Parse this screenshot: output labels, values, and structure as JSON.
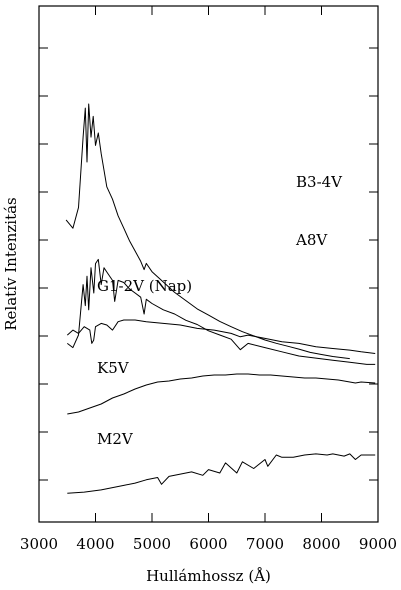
{
  "chart_data": {
    "type": "line",
    "xlabel": "Hullámhossz (Å)",
    "ylabel": "Relatív Intenzitás",
    "xlim": [
      3000,
      9000
    ],
    "x_ticks": [
      3000,
      4000,
      5000,
      6000,
      7000,
      8000,
      9000
    ],
    "y_ticks_labeled": false,
    "y_minor_ticks": 10,
    "grid": false,
    "legend": "none (series labelled directly)",
    "series": [
      {
        "name": "B3-4V",
        "x": [
          3480,
          3600,
          3700,
          3780,
          3820,
          3850,
          3880,
          3920,
          3960,
          4000,
          4050,
          4100,
          4150,
          4200,
          4300,
          4400,
          4500,
          4600,
          4700,
          4800,
          4861,
          4900,
          5000,
          5200,
          5400,
          5600,
          5800,
          6000,
          6200,
          6400,
          6600,
          6800,
          7000,
          7200,
          7400,
          7600,
          7800,
          8000,
          8200,
          8500
        ],
        "y": [
          0.72,
          0.7,
          0.75,
          0.92,
          0.99,
          0.86,
          1.0,
          0.92,
          0.97,
          0.9,
          0.93,
          0.88,
          0.84,
          0.8,
          0.77,
          0.73,
          0.7,
          0.67,
          0.645,
          0.62,
          0.6,
          0.615,
          0.595,
          0.57,
          0.545,
          0.525,
          0.505,
          0.49,
          0.475,
          0.462,
          0.45,
          0.44,
          0.43,
          0.422,
          0.415,
          0.408,
          0.4,
          0.395,
          0.39,
          0.385
        ]
      },
      {
        "name": "A8V",
        "x": [
          3500,
          3600,
          3700,
          3780,
          3820,
          3850,
          3880,
          3920,
          3970,
          4000,
          4050,
          4100,
          4150,
          4200,
          4300,
          4340,
          4400,
          4500,
          4600,
          4700,
          4800,
          4861,
          4900,
          5000,
          5200,
          5400,
          5600,
          5800,
          6000,
          6200,
          6400,
          6563,
          6700,
          7000,
          7300,
          7600,
          7900,
          8200,
          8500,
          8800,
          8950
        ],
        "y": [
          0.48,
          0.47,
          0.5,
          0.62,
          0.57,
          0.64,
          0.56,
          0.66,
          0.6,
          0.67,
          0.68,
          0.62,
          0.66,
          0.65,
          0.63,
          0.58,
          0.63,
          0.625,
          0.61,
          0.6,
          0.59,
          0.55,
          0.585,
          0.575,
          0.56,
          0.55,
          0.535,
          0.525,
          0.51,
          0.5,
          0.49,
          0.465,
          0.48,
          0.47,
          0.46,
          0.45,
          0.445,
          0.44,
          0.435,
          0.43,
          0.43
        ]
      },
      {
        "name": "G1-2V (Nap)",
        "x": [
          3500,
          3600,
          3700,
          3800,
          3900,
          3934,
          3968,
          4000,
          4100,
          4200,
          4300,
          4400,
          4500,
          4700,
          4900,
          5200,
          5500,
          5800,
          6100,
          6400,
          6563,
          6700,
          7000,
          7300,
          7600,
          7900,
          8200,
          8500,
          8700,
          8950
        ],
        "y": [
          0.355,
          0.37,
          0.36,
          0.38,
          0.37,
          0.33,
          0.34,
          0.38,
          0.39,
          0.385,
          0.37,
          0.395,
          0.4,
          0.4,
          0.395,
          0.39,
          0.385,
          0.375,
          0.37,
          0.36,
          0.35,
          0.355,
          0.345,
          0.335,
          0.33,
          0.32,
          0.315,
          0.31,
          0.305,
          0.3
        ]
      },
      {
        "name": "K5V",
        "x": [
          3500,
          3700,
          3900,
          4100,
          4300,
          4500,
          4700,
          4900,
          5100,
          5300,
          5500,
          5700,
          5900,
          6100,
          6300,
          6500,
          6700,
          6900,
          7100,
          7300,
          7500,
          7700,
          7900,
          8100,
          8300,
          8500,
          8600,
          8700,
          8950
        ],
        "y": [
          0.1,
          0.11,
          0.13,
          0.15,
          0.18,
          0.2,
          0.225,
          0.245,
          0.26,
          0.265,
          0.275,
          0.28,
          0.29,
          0.295,
          0.295,
          0.3,
          0.3,
          0.295,
          0.295,
          0.29,
          0.285,
          0.28,
          0.28,
          0.275,
          0.27,
          0.26,
          0.255,
          0.26,
          0.255
        ]
      },
      {
        "name": "M2V",
        "x": [
          3500,
          3800,
          4100,
          4300,
          4500,
          4700,
          4900,
          5100,
          5168,
          5300,
          5500,
          5700,
          5900,
          6000,
          6200,
          6300,
          6500,
          6600,
          6800,
          7000,
          7050,
          7200,
          7300,
          7500,
          7700,
          7900,
          8100,
          8200,
          8400,
          8500,
          8600,
          8700,
          8950
        ],
        "y": [
          0.03,
          0.035,
          0.045,
          0.055,
          0.065,
          0.075,
          0.09,
          0.1,
          0.07,
          0.105,
          0.115,
          0.125,
          0.11,
          0.135,
          0.12,
          0.165,
          0.12,
          0.17,
          0.14,
          0.18,
          0.15,
          0.2,
          0.19,
          0.19,
          0.2,
          0.205,
          0.2,
          0.205,
          0.195,
          0.205,
          0.18,
          0.2,
          0.2
        ]
      }
    ]
  }
}
